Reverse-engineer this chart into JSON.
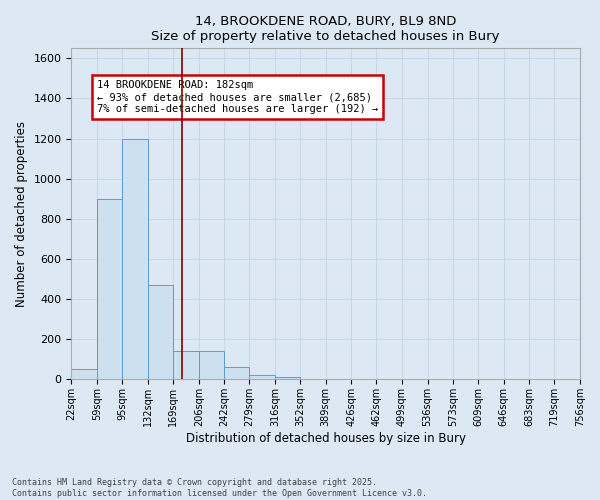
{
  "title_line1": "14, BROOKDENE ROAD, BURY, BL9 8ND",
  "title_line2": "Size of property relative to detached houses in Bury",
  "xlabel": "Distribution of detached houses by size in Bury",
  "ylabel": "Number of detached properties",
  "bin_edges": [
    22,
    59,
    95,
    132,
    169,
    206,
    242,
    279,
    316,
    352,
    389,
    426,
    462,
    499,
    536,
    573,
    609,
    646,
    683,
    719,
    756
  ],
  "bin_counts": [
    50,
    900,
    1200,
    470,
    140,
    140,
    60,
    20,
    10,
    0,
    0,
    0,
    0,
    0,
    0,
    0,
    0,
    0,
    0,
    0
  ],
  "bar_facecolor": "#cce0f0",
  "bar_edgecolor": "#5b9bd5",
  "grid_color": "#c0d4e8",
  "background_color": "#dce8f4",
  "vline_x": 182,
  "vline_color": "#8b0000",
  "annotation_text": "14 BROOKDENE ROAD: 182sqm\n← 93% of detached houses are smaller (2,685)\n7% of semi-detached houses are larger (192) →",
  "annotation_box_edgecolor": "#cc0000",
  "annotation_box_facecolor": "white",
  "ylim": [
    0,
    1650
  ],
  "yticks": [
    0,
    200,
    400,
    600,
    800,
    1000,
    1200,
    1400,
    1600
  ],
  "footnote": "Contains HM Land Registry data © Crown copyright and database right 2025.\nContains public sector information licensed under the Open Government Licence v3.0.",
  "tick_labels": [
    "22sqm",
    "59sqm",
    "95sqm",
    "132sqm",
    "169sqm",
    "206sqm",
    "242sqm",
    "279sqm",
    "316sqm",
    "352sqm",
    "389sqm",
    "426sqm",
    "462sqm",
    "499sqm",
    "536sqm",
    "573sqm",
    "609sqm",
    "646sqm",
    "683sqm",
    "719sqm",
    "756sqm"
  ]
}
